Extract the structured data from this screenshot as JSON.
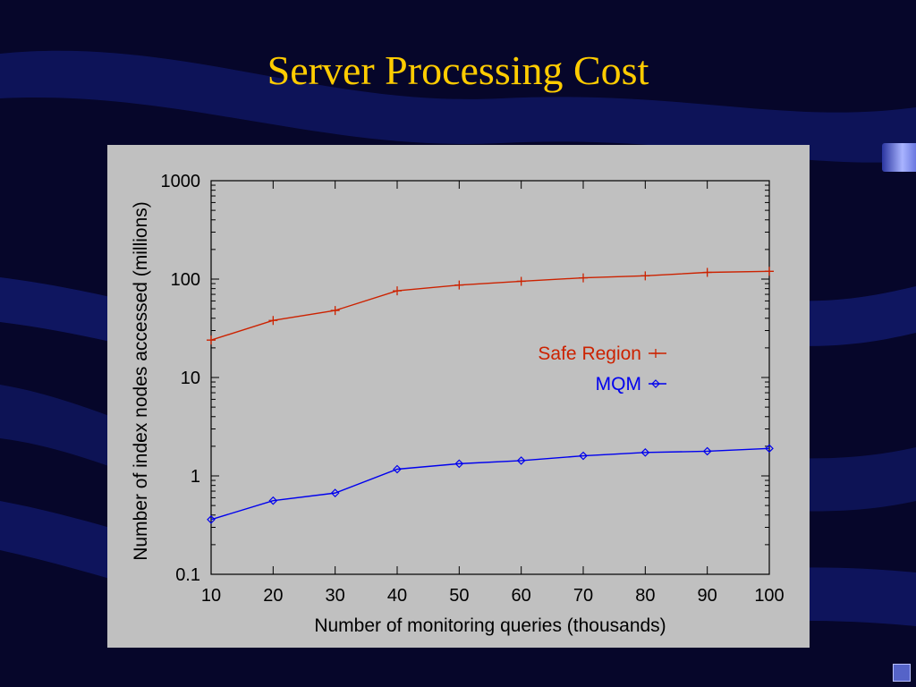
{
  "slide": {
    "title": "Server Processing Cost"
  },
  "colors": {
    "background": "#06062a",
    "title": "#ffcc00",
    "panel": "#c0c0c0",
    "safe_region": "#cc2200",
    "mqm": "#0000ee"
  },
  "icons": {
    "nav": "slide-nav-icon",
    "tab": "side-tab-icon"
  },
  "chart_data": {
    "type": "line",
    "title": "",
    "xlabel": "Number of monitoring queries (thousands)",
    "ylabel": "Number of index nodes accessed (millions)",
    "x": [
      10,
      20,
      30,
      40,
      50,
      60,
      70,
      80,
      90,
      100
    ],
    "x_ticks": [
      "10",
      "20",
      "30",
      "40",
      "50",
      "60",
      "70",
      "80",
      "90",
      "100"
    ],
    "xlim": [
      10,
      100
    ],
    "y_scale": "log",
    "ylim": [
      0.1,
      1000
    ],
    "y_ticks": [
      0.1,
      1,
      10,
      100,
      1000
    ],
    "y_tick_labels": [
      "0.1",
      "1",
      "10",
      "100",
      "1000"
    ],
    "grid": false,
    "legend_position": "right-middle",
    "series": [
      {
        "name": "Safe Region",
        "marker": "plus",
        "color": "#cc2200",
        "values": [
          24,
          38,
          48,
          76,
          87,
          95,
          103,
          108,
          117,
          120
        ]
      },
      {
        "name": "MQM",
        "marker": "diamond",
        "color": "#0000ee",
        "values": [
          0.36,
          0.56,
          0.67,
          1.17,
          1.33,
          1.43,
          1.6,
          1.73,
          1.78,
          1.9
        ]
      }
    ]
  }
}
